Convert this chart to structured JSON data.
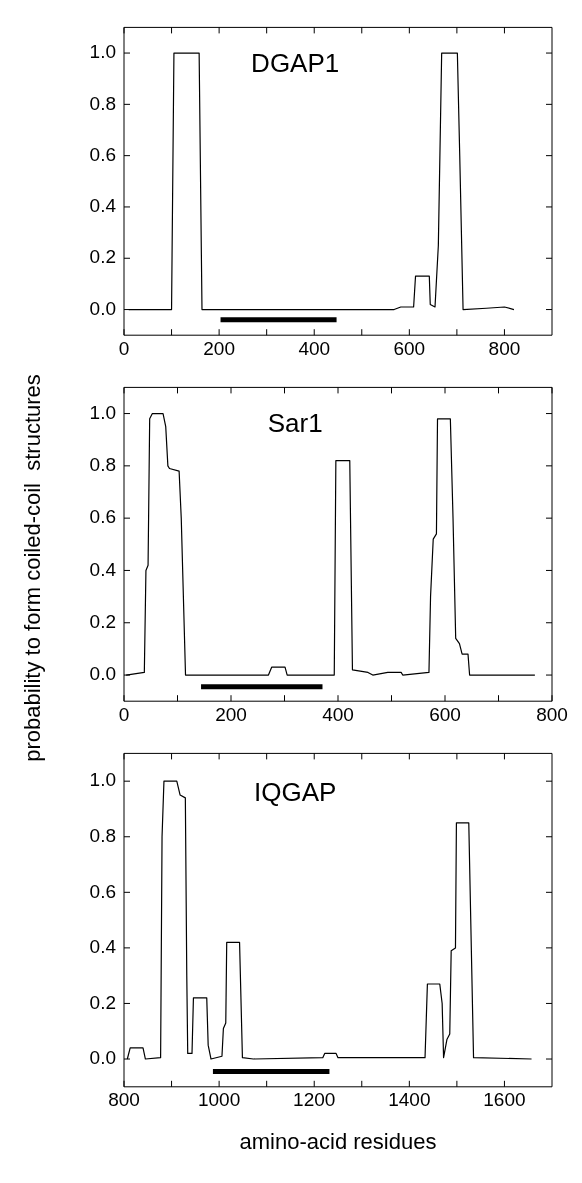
{
  "chart_data": [
    {
      "type": "line",
      "title": "DGAP1",
      "xlim": [
        0,
        900
      ],
      "ylim": [
        -0.1,
        1.1
      ],
      "xticks": [
        0,
        {
          "value": 100,
          "label": null
        },
        200,
        {
          "value": 300,
          "label": null
        },
        400,
        {
          "value": 500,
          "label": null
        },
        600,
        {
          "value": 700,
          "label": null
        },
        800
      ],
      "yticks": [
        {
          "value": 0,
          "label": "0.0"
        },
        {
          "value": 0.2,
          "label": "0.2"
        },
        {
          "value": 0.4,
          "label": "0.4"
        },
        {
          "value": 0.6,
          "label": "0.6"
        },
        {
          "value": 0.8,
          "label": "0.8"
        },
        {
          "value": 1,
          "label": "1.0"
        }
      ],
      "grid": false,
      "legend": false,
      "marker": "none",
      "series": [
        {
          "type": "line",
          "color": "#000000",
          "x": [
            10,
            100,
            105,
            158,
            164,
            568,
            582,
            609,
            613,
            642,
            644,
            654,
            661,
            668,
            701,
            706,
            713,
            762,
            800,
            820
          ],
          "values": [
            0,
            0,
            1,
            1,
            0,
            0,
            0.01,
            0.01,
            0.13,
            0.13,
            0.02,
            0.01,
            0.25,
            1,
            1,
            0.6,
            0,
            0.005,
            0.01,
            0
          ]
        },
        {
          "type": "line",
          "color": "#000000",
          "x": [
            203,
            447
          ],
          "values": [
            -0.04,
            -0.04
          ]
        }
      ]
    },
    {
      "type": "line",
      "title": "Sar1",
      "ylabel": "probability to form coiled-coil  structures",
      "xlim": [
        0,
        800
      ],
      "ylim": [
        -0.1,
        1.1
      ],
      "xticks": [
        0,
        {
          "value": 100,
          "label": null
        },
        200,
        {
          "value": 300,
          "label": null
        },
        400,
        {
          "value": 500,
          "label": null
        },
        600,
        {
          "value": 700,
          "label": null
        },
        800
      ],
      "yticks": [
        {
          "value": 0,
          "label": "0.0"
        },
        {
          "value": 0.2,
          "label": "0.2"
        },
        {
          "value": 0.4,
          "label": "0.4"
        },
        {
          "value": 0.6,
          "label": "0.6"
        },
        {
          "value": 0.8,
          "label": "0.8"
        },
        {
          "value": 1,
          "label": "1.0"
        }
      ],
      "grid": false,
      "legend": false,
      "marker": "none",
      "series": [
        {
          "type": "line",
          "color": "#000000",
          "x": [
            4,
            38,
            41,
            45,
            48,
            53,
            73,
            78,
            82,
            85,
            103,
            107,
            115,
            270,
            276,
            301,
            305,
            393,
            396,
            422,
            427,
            456,
            465,
            493,
            518,
            521,
            570,
            573,
            578,
            584,
            586,
            610,
            615,
            620,
            627,
            632,
            643,
            646,
            768
          ],
          "values": [
            0,
            0.01,
            0.4,
            0.42,
            0.98,
            1,
            1,
            0.95,
            0.8,
            0.79,
            0.78,
            0.6,
            0,
            0,
            0.03,
            0.03,
            0,
            0,
            0.82,
            0.82,
            0.02,
            0.01,
            0,
            0.01,
            0.01,
            0,
            0.01,
            0.3,
            0.52,
            0.54,
            0.98,
            0.98,
            0.6,
            0.14,
            0.12,
            0.08,
            0.08,
            0,
            0
          ]
        },
        {
          "type": "line",
          "color": "#000000",
          "x": [
            144,
            371
          ],
          "values": [
            -0.045,
            -0.045
          ]
        }
      ]
    },
    {
      "type": "line",
      "title": "IQGAP",
      "xlabel": "amino-acid residues",
      "xlim": [
        800,
        1700
      ],
      "ylim": [
        -0.1,
        1.1
      ],
      "xticks": [
        800,
        {
          "value": 900,
          "label": null
        },
        1000,
        {
          "value": 1100,
          "label": null
        },
        1200,
        {
          "value": 1300,
          "label": null
        },
        1400,
        {
          "value": 1500,
          "label": null
        },
        1600
      ],
      "yticks": [
        {
          "value": 0,
          "label": "0.0"
        },
        {
          "value": 0.2,
          "label": "0.2"
        },
        {
          "value": 0.4,
          "label": "0.4"
        },
        {
          "value": 0.6,
          "label": "0.6"
        },
        {
          "value": 0.8,
          "label": "0.8"
        },
        {
          "value": 1,
          "label": "1.0"
        }
      ],
      "grid": false,
      "legend": false,
      "marker": "none",
      "series": [
        {
          "type": "line",
          "color": "#000000",
          "x": [
            807,
            813,
            840,
            845,
            877,
            880,
            884,
            911,
            918,
            929,
            932,
            934,
            943,
            946,
            974,
            977,
            983,
            1006,
            1009,
            1014,
            1016,
            1043,
            1049,
            1072,
            1218,
            1222,
            1246,
            1250,
            1433,
            1438,
            1464,
            1469,
            1472,
            1479,
            1485,
            1488,
            1497,
            1499,
            1525,
            1535,
            1657
          ],
          "values": [
            0,
            0.04,
            0.04,
            0,
            0.005,
            0.8,
            1,
            1,
            0.95,
            0.94,
            0.3,
            0.02,
            0.02,
            0.22,
            0.22,
            0.05,
            0,
            0.01,
            0.11,
            0.13,
            0.42,
            0.42,
            0.005,
            0,
            0.005,
            0.02,
            0.02,
            0.005,
            0.005,
            0.27,
            0.27,
            0.2,
            0.005,
            0.07,
            0.09,
            0.39,
            0.4,
            0.85,
            0.85,
            0.005,
            0
          ]
        },
        {
          "type": "line",
          "color": "#000000",
          "x": [
            987,
            1232
          ],
          "values": [
            -0.045,
            -0.045
          ]
        }
      ]
    }
  ]
}
